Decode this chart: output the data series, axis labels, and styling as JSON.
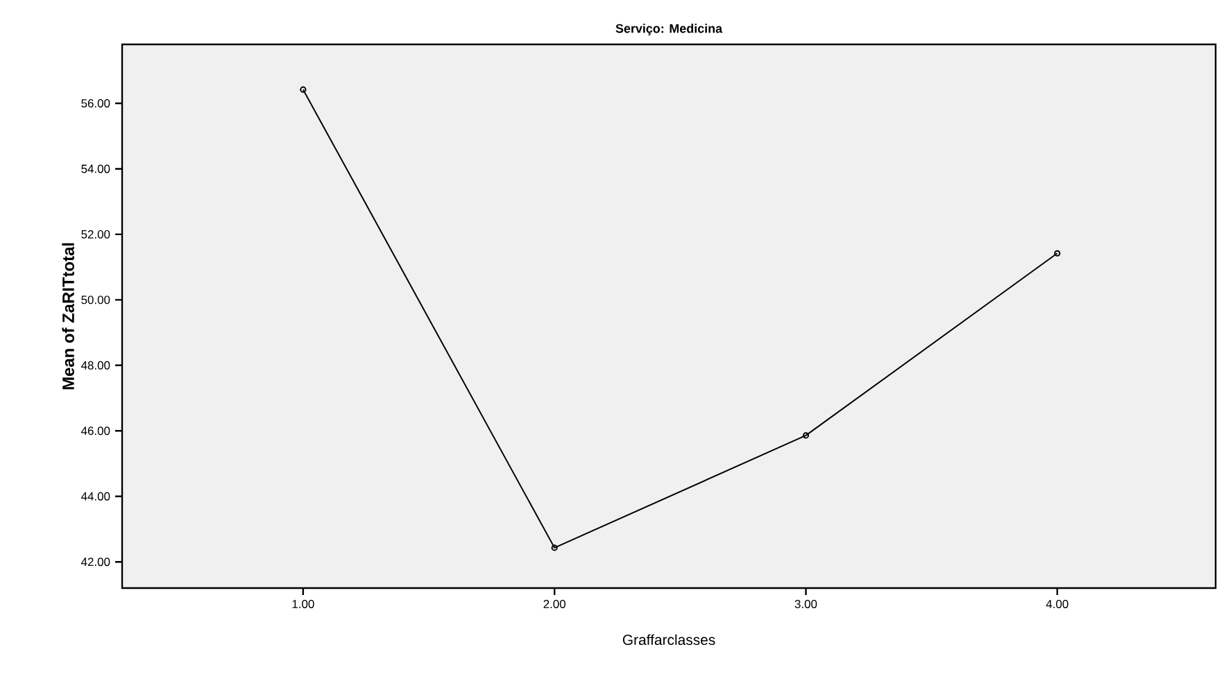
{
  "chart_data": {
    "type": "line",
    "title": "Serviço: Medicina",
    "xlabel": "Graffarclasses",
    "ylabel": "Mean of ZaRITtotal",
    "x": [
      1,
      2,
      3,
      4
    ],
    "series": [
      {
        "color": "#000000",
        "values": [
          56.42,
          42.43,
          45.86,
          51.42
        ]
      }
    ],
    "xlim": [
      0.28,
      4.63
    ],
    "ylim": [
      41.2,
      57.8
    ],
    "xticks": [
      {
        "value": 1,
        "label": "1.00"
      },
      {
        "value": 2,
        "label": "2.00"
      },
      {
        "value": 3,
        "label": "3.00"
      },
      {
        "value": 4,
        "label": "4.00"
      }
    ],
    "yticks": [
      {
        "value": 42,
        "label": "42.00"
      },
      {
        "value": 44,
        "label": "44.00"
      },
      {
        "value": 46,
        "label": "46.00"
      },
      {
        "value": 48,
        "label": "48.00"
      },
      {
        "value": 50,
        "label": "50.00"
      },
      {
        "value": 52,
        "label": "52.00"
      },
      {
        "value": 54,
        "label": "54.00"
      },
      {
        "value": 56,
        "label": "56.00"
      }
    ],
    "marker": "circle",
    "line_style": "solid"
  }
}
